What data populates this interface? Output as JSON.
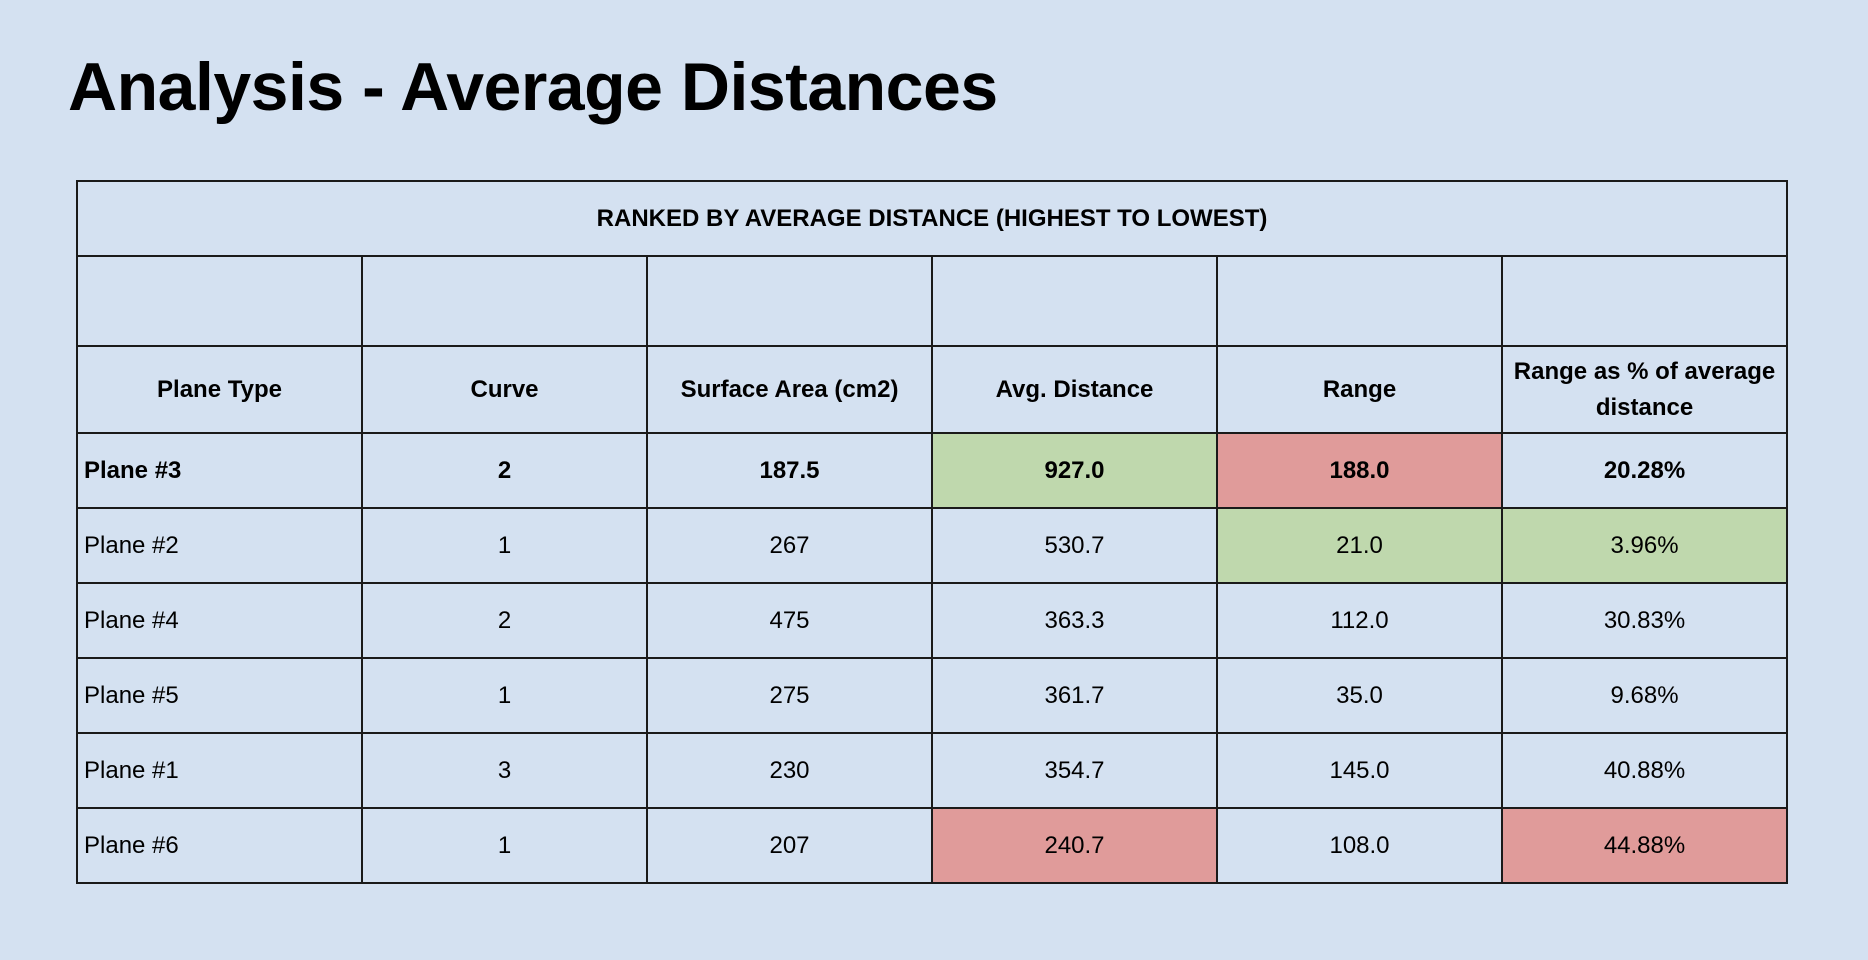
{
  "title": "Analysis - Average Distances",
  "table": {
    "caption": "RANKED BY AVERAGE DISTANCE (HIGHEST TO LOWEST)",
    "headers": [
      "Plane Type",
      "Curve",
      "Surface Area (cm2)",
      "Avg. Distance",
      "Range",
      "Range as % of average distance"
    ],
    "rows": [
      {
        "plane": "Plane #3",
        "curve": "2",
        "surface_area": "187.5",
        "avg_distance": "927.0",
        "range": "188.0",
        "range_pct": "20.28%"
      },
      {
        "plane": "Plane #2",
        "curve": "1",
        "surface_area": "267",
        "avg_distance": "530.7",
        "range": "21.0",
        "range_pct": "3.96%"
      },
      {
        "plane": "Plane #4",
        "curve": "2",
        "surface_area": "475",
        "avg_distance": "363.3",
        "range": "112.0",
        "range_pct": "30.83%"
      },
      {
        "plane": "Plane #5",
        "curve": "1",
        "surface_area": "275",
        "avg_distance": "361.7",
        "range": "35.0",
        "range_pct": "9.68%"
      },
      {
        "plane": "Plane #1",
        "curve": "3",
        "surface_area": "230",
        "avg_distance": "354.7",
        "range": "145.0",
        "range_pct": "40.88%"
      },
      {
        "plane": "Plane #6",
        "curve": "1",
        "surface_area": "207",
        "avg_distance": "240.7",
        "range": "108.0",
        "range_pct": "44.88%"
      }
    ]
  },
  "colors": {
    "background": "#d4e1f1",
    "highlight_good": "#bfd8ad",
    "highlight_bad": "#e09b9a"
  }
}
